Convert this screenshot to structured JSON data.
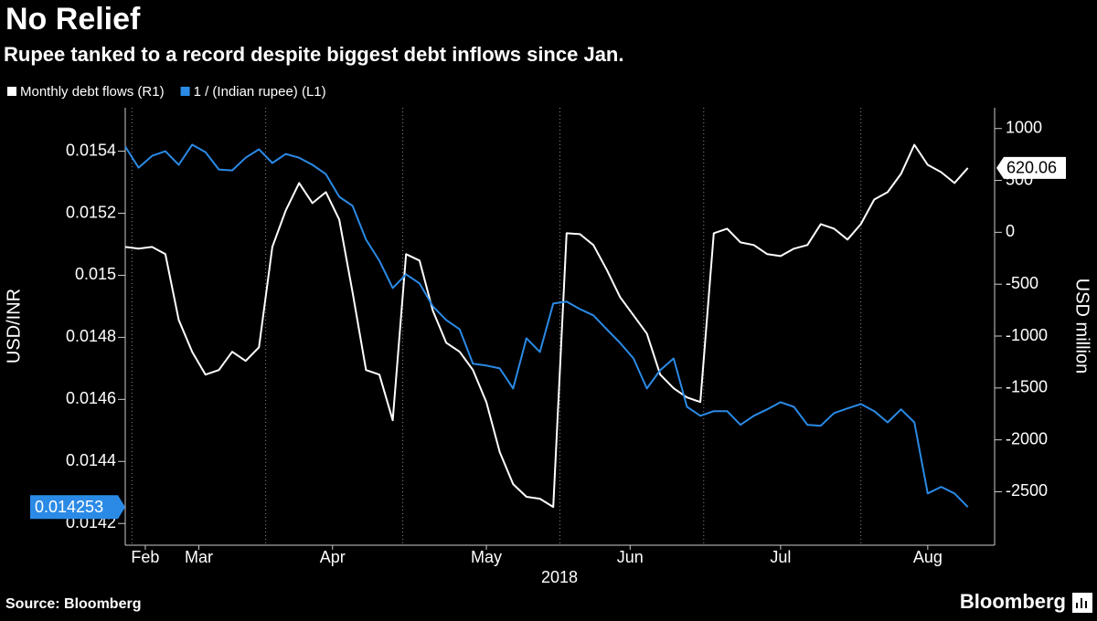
{
  "chart_data": {
    "type": "line",
    "title": "No Relief",
    "subtitle": "Rupee tanked to a record despite biggest debt inflows since Jan.",
    "ylabel": "USD/INR",
    "y2label": "USD million",
    "xlabel": "2018",
    "source": "Source: Bloomberg",
    "brand": "Bloomberg",
    "xlim": [
      0,
      130
    ],
    "xticks": [
      {
        "value": 3,
        "label": "Feb"
      },
      {
        "value": 11,
        "label": "Mar"
      },
      {
        "value": 31,
        "label": "Apr"
      },
      {
        "value": 54,
        "label": "May"
      },
      {
        "value": 75.5,
        "label": "Jun"
      },
      {
        "value": 98,
        "label": "Jul"
      },
      {
        "value": 120,
        "label": "Aug"
      }
    ],
    "xgrid": [
      1,
      21,
      41.5,
      65,
      86.5,
      110
    ],
    "ylim": [
      0.01413,
      0.01554
    ],
    "yticks": [
      0.0142,
      0.0144,
      0.0146,
      0.0148,
      0.015,
      0.0152,
      0.0154
    ],
    "y2lim": [
      -3015,
      1200
    ],
    "y2ticks": [
      -2500,
      -2000,
      -1500,
      -1000,
      -500,
      0,
      500,
      1000
    ],
    "x": [
      0,
      2,
      4,
      6,
      8,
      10,
      12,
      14,
      16,
      18,
      20,
      22,
      24,
      26,
      28,
      30,
      32,
      34,
      36,
      38,
      40,
      42,
      44,
      46,
      48,
      50,
      52,
      54,
      56,
      58,
      60,
      62,
      64,
      66,
      68,
      70,
      72,
      74,
      76,
      78,
      80,
      82,
      84,
      86,
      88,
      90,
      92,
      94,
      96,
      98,
      100,
      102,
      104,
      106,
      108,
      110,
      112,
      114,
      116,
      118,
      120,
      122,
      124,
      126
    ],
    "series": [
      {
        "name": "Monthly debt flows (R1)",
        "color": "#ffffff",
        "axis": "y2",
        "values": [
          -141,
          -158,
          -141,
          -211,
          -844,
          -1151,
          -1371,
          -1327,
          -1151,
          -1239,
          -1108,
          -141,
          211,
          475,
          281,
          387,
          123,
          -580,
          -1327,
          -1371,
          -1811,
          -211,
          -272,
          -756,
          -1064,
          -1151,
          -1327,
          -1635,
          -2118,
          -2426,
          -2549,
          -2567,
          -2646,
          -9,
          -18,
          -123,
          -360,
          -624,
          -800,
          -976,
          -1371,
          -1503,
          -1591,
          -1635,
          -9,
          35,
          -97,
          -123,
          -211,
          -229,
          -158,
          -123,
          79,
          35,
          -70,
          79,
          316,
          387,
          563,
          844,
          650,
          580,
          475,
          620.06
        ]
      },
      {
        "name": "1 / (Indian rupee) (L1)",
        "color": "#2b8ae6",
        "axis": "y",
        "values": [
          0.015415,
          0.015347,
          0.015385,
          0.0154,
          0.015356,
          0.015421,
          0.015397,
          0.015341,
          0.015338,
          0.015379,
          0.015406,
          0.015362,
          0.015391,
          0.015379,
          0.015356,
          0.015326,
          0.015253,
          0.015224,
          0.015115,
          0.015047,
          0.014959,
          0.015003,
          0.014974,
          0.0149,
          0.014856,
          0.014826,
          0.014715,
          0.014709,
          0.0147,
          0.014635,
          0.014797,
          0.014753,
          0.014909,
          0.014915,
          0.014891,
          0.014871,
          0.014826,
          0.014782,
          0.014732,
          0.014635,
          0.014694,
          0.014732,
          0.014576,
          0.014547,
          0.014562,
          0.014562,
          0.014518,
          0.014547,
          0.014568,
          0.014591,
          0.014576,
          0.014518,
          0.014515,
          0.014556,
          0.014571,
          0.014585,
          0.014562,
          0.014526,
          0.014568,
          0.014526,
          0.014297,
          0.014318,
          0.014297,
          0.014253
        ]
      }
    ]
  }
}
